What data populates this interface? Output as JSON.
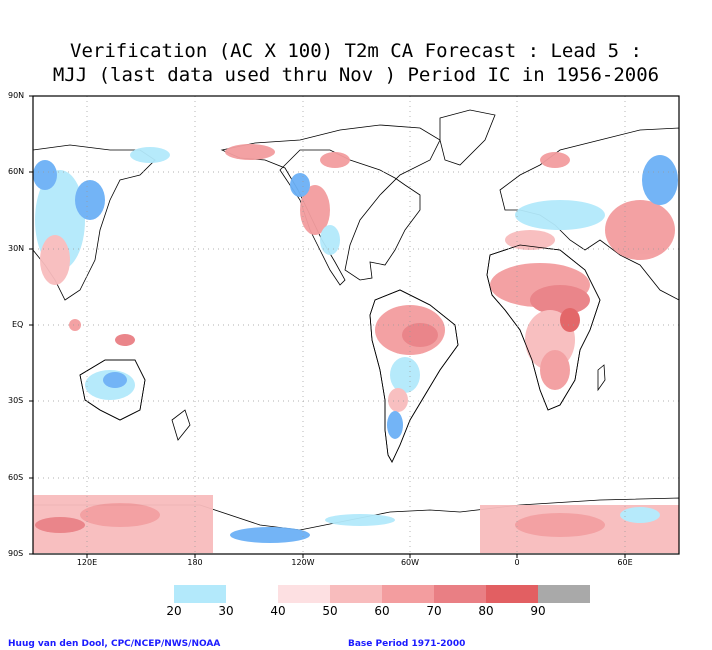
{
  "title": {
    "line1": "Verification (AC X 100) T2m CA Forecast : Lead 5 :",
    "line2": "MJJ (last data used thru Nov ) Period IC in 1956-2006"
  },
  "lat_labels": [
    "90N",
    "60N",
    "30N",
    "EQ",
    "30S",
    "60S",
    "90S"
  ],
  "lon_labels": [
    "120E",
    "180",
    "120W",
    "60W",
    "0",
    "60E"
  ],
  "legend": {
    "labels": [
      "20",
      "30",
      "40",
      "50",
      "60",
      "70",
      "80",
      "90"
    ],
    "colors": [
      "#6cb1f6",
      "#b3e9fb",
      "#ffffff",
      "#fde0e2",
      "#f8bcbd",
      "#f39d9f",
      "#e97f84",
      "#e25f62",
      "#a9a9a9"
    ]
  },
  "credits": {
    "left": "Huug van den Dool, CPC/NCEP/NWS/NOAA",
    "right": "Base Period 1971-2000"
  }
}
